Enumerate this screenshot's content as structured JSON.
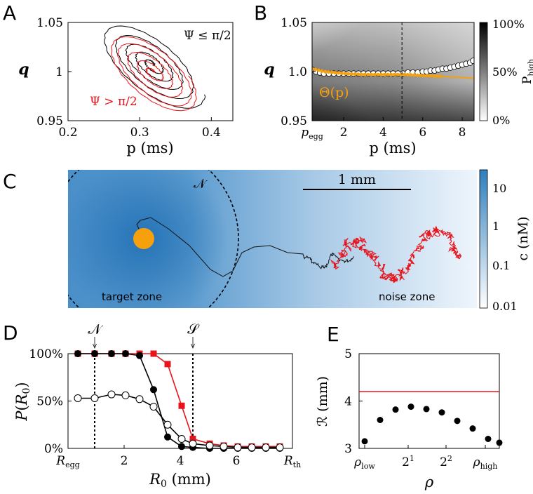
{
  "colors": {
    "red": "#e8141c",
    "black": "#000000",
    "orange": "#f5a00c",
    "blue_high": "#2f7fbd",
    "blue_low": "#f2f7fd",
    "gray_dark": "#000000",
    "gray_light": "#ffffff"
  },
  "panel_letters": {
    "A": "A",
    "B": "B",
    "C": "C",
    "D": "D",
    "E": "E"
  },
  "chart_data": [
    {
      "id": "A",
      "type": "line",
      "xlabel": "p (ms)",
      "ylabel": "q",
      "xlim": [
        0.2,
        0.43
      ],
      "ylim": [
        0.95,
        1.05
      ],
      "xticks": [
        "0.2",
        "0.3",
        "0.4"
      ],
      "xtick_values": [
        0.2,
        0.3,
        0.4
      ],
      "yticks": [
        "0.95",
        "1",
        "1.05"
      ],
      "ytick_values": [
        0.95,
        1.0,
        1.05
      ],
      "annotations": [
        "Ψ ≤ π/2",
        "Ψ > π/2"
      ],
      "series": [
        {
          "color": "black",
          "center": [
            0.317,
            1.007
          ],
          "semi_axes": [
            [
              0.003,
              0.002
            ],
            [
              0.022,
              0.009
            ],
            [
              0.042,
              0.016
            ],
            [
              0.063,
              0.025
            ],
            [
              0.087,
              0.034
            ]
          ]
        },
        {
          "color": "red",
          "center": [
            0.318,
            0.999
          ],
          "semi_axes": [
            [
              0.004,
              0.002
            ],
            [
              0.022,
              0.009
            ],
            [
              0.042,
              0.017
            ],
            [
              0.062,
              0.026
            ],
            [
              0.072,
              0.031
            ]
          ]
        }
      ]
    },
    {
      "id": "B",
      "type": "heatmap",
      "xlabel": "p (ms)",
      "ylabel": "q",
      "xlim": [
        0.4,
        8.6
      ],
      "ylim": [
        0.95,
        1.05
      ],
      "xticks": [
        "p_egg",
        "2",
        "4",
        "6",
        "8"
      ],
      "xtick_values": [
        0.4,
        2,
        4,
        6,
        8
      ],
      "yticks": [
        "0.95",
        "1.0",
        "1.05"
      ],
      "ytick_values": [
        0.95,
        1.0,
        1.05
      ],
      "colorbar": {
        "label": "P_high",
        "ticks": [
          "0%",
          "50%",
          "100%"
        ]
      },
      "vline_x": 4.95,
      "curve_label": "Θ(p)",
      "theta_curve": {
        "x": [
          0.4,
          1,
          2,
          3,
          4,
          5,
          6,
          7,
          8,
          8.6
        ],
        "y": [
          1.003,
          1.0,
          0.998,
          0.997,
          0.997,
          0.997,
          0.996,
          0.995,
          0.994,
          0.993
        ]
      },
      "scatter": {
        "x": [
          0.4,
          0.6,
          0.8,
          1.0,
          1.25,
          1.5,
          1.75,
          2.0,
          2.25,
          2.5,
          2.75,
          3.0,
          3.25,
          3.5,
          3.75,
          4.0,
          4.25,
          4.5,
          4.75,
          5.0,
          5.25,
          5.5,
          5.75,
          6.0,
          6.2,
          6.4,
          6.6,
          6.8,
          7.0,
          7.2,
          7.4,
          7.6,
          7.8,
          8.0,
          8.2,
          8.4,
          8.55
        ],
        "y": [
          1.002,
          1.0,
          0.999,
          0.998,
          0.998,
          0.998,
          0.998,
          0.998,
          0.998,
          0.998,
          0.998,
          0.998,
          0.998,
          0.998,
          0.998,
          0.998,
          0.998,
          0.998,
          0.998,
          0.998,
          0.999,
          0.999,
          0.999,
          1.0,
          1.0,
          1.001,
          1.001,
          1.002,
          1.003,
          1.003,
          1.004,
          1.005,
          1.006,
          1.007,
          1.008,
          1.009,
          1.011
        ]
      }
    },
    {
      "id": "C",
      "type": "heatmap",
      "colorbar": {
        "label": "c (nM)",
        "ticks": [
          "0.01",
          "0.1",
          "1",
          "10"
        ]
      },
      "scalebar_label": "1 mm",
      "region_labels": {
        "target": "target zone",
        "noise": "noise zone",
        "boundary": "𝒩"
      }
    },
    {
      "id": "D",
      "type": "line",
      "xlabel": "R_0 (mm)",
      "ylabel": "P(R_0)",
      "xlim": [
        0.0,
        8.0
      ],
      "ylim": [
        0,
        100
      ],
      "xticks": [
        "R_egg",
        "2",
        "4",
        "6",
        "R_th"
      ],
      "xtick_values": [
        0,
        2,
        4,
        6,
        8
      ],
      "yticks": [
        "0%",
        "50%",
        "100%"
      ],
      "ytick_values": [
        0,
        50,
        100
      ],
      "vlines": [
        {
          "x": 0.95,
          "label": "𝒩"
        },
        {
          "x": 4.45,
          "label": "𝒮"
        }
      ],
      "series": [
        {
          "color": "red",
          "marker": "square",
          "x": [
            0.35,
            0.95,
            1.55,
            2.05,
            2.55,
            3.05,
            3.55,
            4.05,
            4.45,
            5.05,
            5.55,
            6.05,
            6.55,
            7.05,
            7.55
          ],
          "values": [
            100,
            100,
            100,
            100,
            100,
            100,
            89,
            45,
            10,
            5,
            3,
            2,
            2,
            2,
            2
          ]
        },
        {
          "color": "black",
          "marker": "filled-circle",
          "x": [
            0.35,
            0.95,
            1.55,
            2.05,
            2.55,
            3.05,
            3.55,
            4.05,
            4.45,
            5.05,
            5.55,
            6.05,
            6.55,
            7.05,
            7.55
          ],
          "values": [
            100,
            100,
            100,
            100,
            98,
            62,
            12,
            2,
            1,
            0,
            0,
            0,
            0,
            0,
            0
          ]
        },
        {
          "color": "black",
          "marker": "open-circle",
          "x": [
            0.35,
            0.95,
            1.55,
            2.05,
            2.55,
            3.05,
            3.55,
            4.05,
            4.45,
            5.05,
            5.55,
            6.05,
            6.55,
            7.05,
            7.55
          ],
          "values": [
            53,
            53,
            57,
            56,
            52,
            44,
            25,
            10,
            5,
            3,
            2,
            1,
            1,
            1,
            1
          ]
        }
      ]
    },
    {
      "id": "E",
      "type": "scatter",
      "xlabel": "ρ",
      "ylabel": "ℛ (mm)",
      "xlim": [
        0,
        1
      ],
      "ylim": [
        3,
        5
      ],
      "xticks": [
        "ρ_low",
        "2^1",
        "2^2",
        "ρ_high"
      ],
      "xtick_values": [
        0.04,
        0.35,
        0.62,
        0.9
      ],
      "yticks": [
        "3",
        "4",
        "5"
      ],
      "ytick_values": [
        3,
        4,
        5
      ],
      "hline_y": 4.2,
      "x": [
        0.04,
        0.15,
        0.26,
        0.37,
        0.48,
        0.59,
        0.7,
        0.81,
        0.92,
        1.0
      ],
      "values": [
        3.15,
        3.6,
        3.82,
        3.88,
        3.83,
        3.76,
        3.58,
        3.42,
        3.2,
        3.12
      ]
    }
  ]
}
